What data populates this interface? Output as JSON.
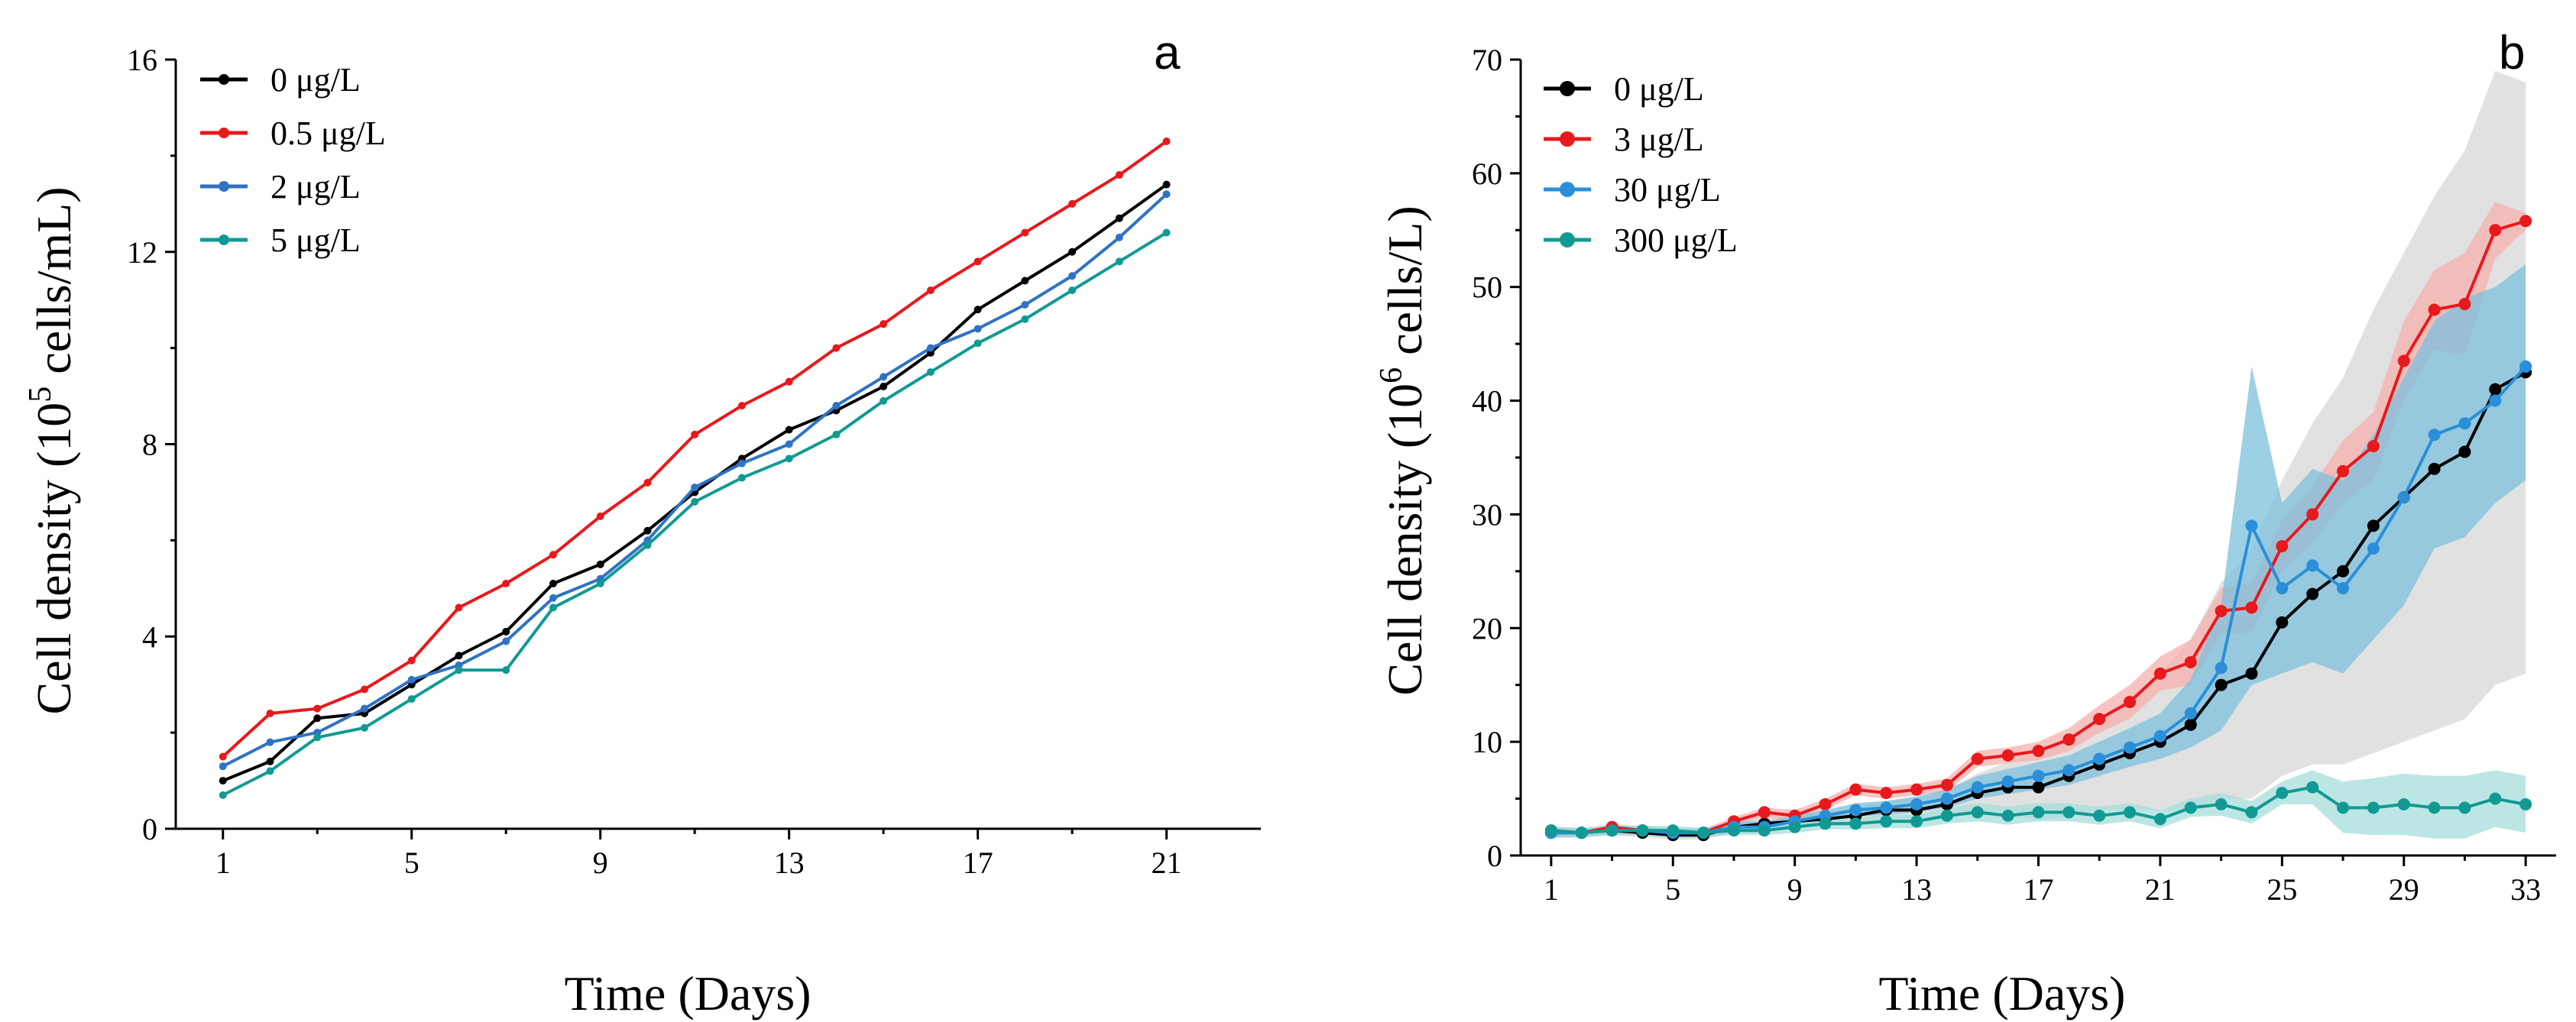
{
  "chart_data": [
    {
      "type": "line",
      "panel_label": "a",
      "xlabel": "Time (Days)",
      "ylabel_prefix": "Cell density (10",
      "ylabel_sup": "5",
      "ylabel_suffix": " cells/mL)",
      "xlim": [
        0,
        23
      ],
      "ylim": [
        0,
        16
      ],
      "xticks": [
        1,
        5,
        9,
        13,
        17,
        21
      ],
      "yticks": [
        0,
        4,
        8,
        12,
        16
      ],
      "legend_position": "top-left",
      "x": [
        1,
        2,
        3,
        4,
        5,
        6,
        7,
        8,
        9,
        10,
        11,
        12,
        13,
        14,
        15,
        16,
        17,
        18,
        19,
        20,
        21
      ],
      "series": [
        {
          "name": "0 μg/L",
          "color": "#000000",
          "values": [
            1.0,
            1.4,
            2.3,
            2.4,
            3.0,
            3.6,
            4.1,
            5.1,
            5.5,
            6.2,
            7.0,
            7.7,
            8.3,
            8.7,
            9.2,
            9.9,
            10.8,
            11.4,
            12.0,
            12.7,
            13.4
          ]
        },
        {
          "name": "0.5 μg/L",
          "color": "#e8191c",
          "values": [
            1.5,
            2.4,
            2.5,
            2.9,
            3.5,
            4.6,
            5.1,
            5.7,
            6.5,
            7.2,
            8.2,
            8.8,
            9.3,
            10.0,
            10.5,
            11.2,
            11.8,
            12.4,
            13.0,
            13.6,
            14.3
          ]
        },
        {
          "name": "2 μg/L",
          "color": "#2f73c4",
          "values": [
            1.3,
            1.8,
            2.0,
            2.5,
            3.1,
            3.4,
            3.9,
            4.8,
            5.2,
            6.0,
            7.1,
            7.6,
            8.0,
            8.8,
            9.4,
            10.0,
            10.4,
            10.9,
            11.5,
            12.3,
            13.2
          ]
        },
        {
          "name": "5 μg/L",
          "color": "#119a94",
          "values": [
            0.7,
            1.2,
            1.9,
            2.1,
            2.7,
            3.3,
            3.3,
            4.6,
            5.1,
            5.9,
            6.8,
            7.3,
            7.7,
            8.2,
            8.9,
            9.5,
            10.1,
            10.6,
            11.2,
            11.8,
            12.4
          ]
        }
      ]
    },
    {
      "type": "line",
      "panel_label": "b",
      "xlabel": "Time (Days)",
      "ylabel_prefix": "Cell density (10",
      "ylabel_sup": "6",
      "ylabel_suffix": " cells/L)",
      "xlim": [
        0,
        34
      ],
      "ylim": [
        0,
        70
      ],
      "xticks": [
        1,
        5,
        9,
        13,
        17,
        21,
        25,
        29,
        33
      ],
      "yticks": [
        0,
        10,
        20,
        30,
        40,
        50,
        60,
        70
      ],
      "legend_position": "top-left",
      "x": [
        1,
        2,
        3,
        4,
        5,
        6,
        7,
        8,
        9,
        10,
        11,
        12,
        13,
        14,
        15,
        16,
        17,
        18,
        19,
        20,
        21,
        22,
        23,
        24,
        25,
        26,
        27,
        28,
        29,
        30,
        31,
        32,
        33
      ],
      "series": [
        {
          "name": "0 μg/L",
          "color": "#000000",
          "band_color": "#d7d7d7",
          "values": [
            2.0,
            2.0,
            2.2,
            2.0,
            1.8,
            1.8,
            2.5,
            2.8,
            3.0,
            3.2,
            3.5,
            4.0,
            4.0,
            4.5,
            5.5,
            6.0,
            6.0,
            7.0,
            8.0,
            9.0,
            10.0,
            11.5,
            15.0,
            16.0,
            20.5,
            23.0,
            25.0,
            29.0,
            31.5,
            34.0,
            35.5,
            41.0,
            42.5
          ],
          "upper": [
            2.4,
            2.4,
            2.6,
            2.4,
            2.2,
            2.2,
            3.0,
            3.3,
            3.5,
            3.8,
            4.2,
            4.8,
            5.0,
            5.8,
            7.2,
            8.2,
            9.0,
            10.5,
            12.0,
            14.0,
            16.0,
            19.0,
            24.0,
            27.0,
            33.0,
            38.0,
            42.0,
            48.0,
            53.0,
            58.0,
            62.0,
            69.0,
            68.0
          ],
          "lower": [
            1.6,
            1.6,
            1.8,
            1.6,
            1.4,
            1.4,
            2.0,
            2.3,
            2.5,
            2.6,
            2.8,
            3.2,
            3.0,
            3.2,
            3.8,
            3.8,
            3.0,
            3.5,
            4.0,
            4.0,
            4.0,
            4.0,
            5.0,
            5.0,
            7.0,
            8.0,
            8.0,
            9.0,
            10.0,
            11.0,
            12.0,
            15.0,
            16.0
          ]
        },
        {
          "name": "3 μg/L",
          "color": "#e8191c",
          "band_color": "#f6b0ae",
          "values": [
            2.2,
            2.0,
            2.5,
            2.2,
            2.0,
            2.0,
            3.0,
            3.8,
            3.5,
            4.5,
            5.8,
            5.5,
            5.8,
            6.2,
            8.5,
            8.8,
            9.2,
            10.2,
            12.0,
            13.5,
            16.0,
            17.0,
            21.5,
            21.8,
            27.2,
            30.0,
            33.8,
            36.0,
            43.5,
            48.0,
            48.5,
            55.0,
            55.8
          ],
          "upper": [
            2.5,
            2.3,
            2.8,
            2.5,
            2.3,
            2.3,
            3.4,
            4.2,
            4.0,
            5.0,
            6.3,
            6.0,
            6.3,
            6.8,
            9.2,
            9.5,
            10.0,
            11.2,
            13.2,
            15.0,
            17.5,
            19.0,
            23.5,
            24.0,
            29.5,
            32.5,
            36.5,
            39.0,
            47.0,
            51.5,
            53.0,
            57.5,
            56.5
          ],
          "lower": [
            1.9,
            1.7,
            2.2,
            1.9,
            1.7,
            1.7,
            2.6,
            3.4,
            3.0,
            4.0,
            5.3,
            5.0,
            5.3,
            5.6,
            7.8,
            8.1,
            8.4,
            9.2,
            10.8,
            12.0,
            14.5,
            15.0,
            19.5,
            19.6,
            25.0,
            27.5,
            31.0,
            33.0,
            40.0,
            44.5,
            44.0,
            52.5,
            55.0
          ]
        },
        {
          "name": "30 μg/L",
          "color": "#2a8fd8",
          "band_color": "#7cc0dc",
          "values": [
            2.0,
            2.0,
            2.2,
            2.2,
            2.0,
            2.0,
            2.5,
            2.5,
            3.0,
            3.5,
            4.0,
            4.2,
            4.5,
            5.0,
            6.0,
            6.5,
            7.0,
            7.5,
            8.5,
            9.5,
            10.5,
            12.5,
            16.5,
            29.0,
            23.5,
            25.5,
            23.5,
            27.0,
            31.5,
            37.0,
            38.0,
            40.0,
            43.0
          ],
          "upper": [
            2.4,
            2.4,
            2.6,
            2.6,
            2.4,
            2.4,
            3.0,
            3.0,
            3.5,
            4.0,
            4.6,
            4.8,
            5.2,
            5.8,
            7.0,
            7.6,
            8.2,
            8.8,
            10.0,
            11.2,
            12.5,
            15.5,
            22.0,
            43.0,
            31.0,
            34.0,
            33.0,
            37.0,
            42.0,
            47.0,
            49.0,
            50.0,
            52.0
          ],
          "lower": [
            1.6,
            1.6,
            1.8,
            1.8,
            1.6,
            1.6,
            2.0,
            2.0,
            2.5,
            3.0,
            3.4,
            3.6,
            3.8,
            4.2,
            5.0,
            5.4,
            5.8,
            6.2,
            7.0,
            7.8,
            8.5,
            9.5,
            11.0,
            15.0,
            16.0,
            17.0,
            16.0,
            19.0,
            22.0,
            27.0,
            28.0,
            31.0,
            33.0
          ]
        },
        {
          "name": "300 μg/L",
          "color": "#119a94",
          "band_color": "#a5dedb",
          "values": [
            2.2,
            2.0,
            2.2,
            2.2,
            2.2,
            2.0,
            2.2,
            2.2,
            2.5,
            2.8,
            2.8,
            3.0,
            3.0,
            3.5,
            3.8,
            3.5,
            3.8,
            3.8,
            3.5,
            3.8,
            3.2,
            4.2,
            4.5,
            3.8,
            5.5,
            6.0,
            4.2,
            4.2,
            4.5,
            4.2,
            4.2,
            5.0,
            4.5
          ],
          "upper": [
            2.6,
            2.4,
            2.6,
            2.6,
            2.6,
            2.4,
            2.6,
            2.6,
            3.0,
            3.3,
            3.3,
            3.6,
            3.6,
            4.2,
            4.6,
            4.3,
            4.6,
            4.6,
            4.3,
            4.6,
            4.0,
            5.0,
            5.5,
            4.8,
            6.5,
            7.5,
            6.5,
            6.8,
            7.2,
            7.0,
            7.0,
            7.5,
            7.0
          ],
          "lower": [
            1.8,
            1.6,
            1.8,
            1.8,
            1.8,
            1.6,
            1.8,
            1.8,
            2.0,
            2.3,
            2.3,
            2.4,
            2.4,
            2.8,
            3.0,
            2.7,
            3.0,
            3.0,
            2.7,
            3.0,
            2.4,
            3.4,
            3.5,
            2.8,
            4.5,
            4.5,
            2.0,
            1.8,
            1.8,
            1.5,
            1.5,
            2.5,
            2.0
          ]
        }
      ]
    }
  ]
}
